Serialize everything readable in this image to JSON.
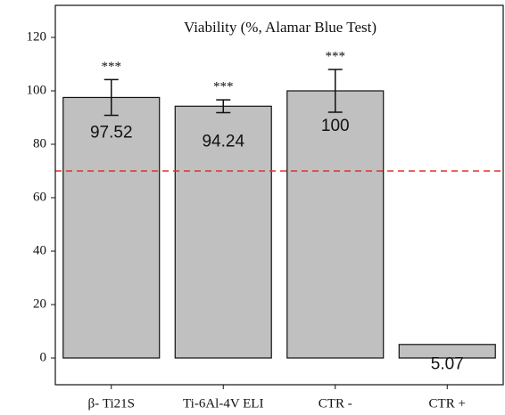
{
  "chart_data": {
    "type": "bar",
    "title": "Viability (%, Alamar Blue Test)",
    "categories": [
      "β- Ti21S",
      "Ti-6Al-4V ELI",
      "CTR -",
      "CTR +"
    ],
    "values": [
      97.52,
      94.24,
      100,
      5.07
    ],
    "errors": [
      6.7,
      2.4,
      8,
      null
    ],
    "annotations": [
      "***",
      "***",
      "***",
      null
    ],
    "color": "#c0c0c0",
    "threshold": 70,
    "threshold_color": "#e03030",
    "ylim": [
      -10,
      132
    ],
    "yticks": [
      0,
      20,
      40,
      60,
      80,
      100,
      120
    ],
    "grid": false
  }
}
